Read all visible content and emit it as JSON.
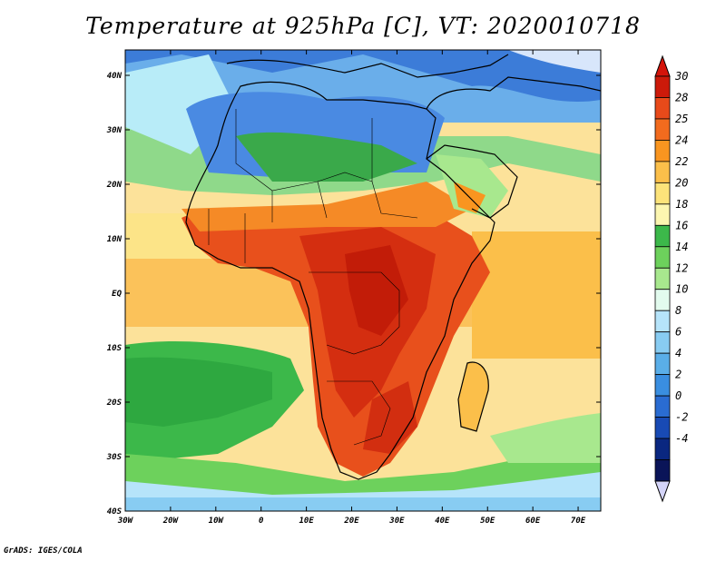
{
  "title": "Temperature at 925hPa [C], VT: 2020010718",
  "footer": "GrADS: IGES/COLA",
  "axes": {
    "x_ticks": [
      "30W",
      "20W",
      "10W",
      "0",
      "10E",
      "20E",
      "30E",
      "40E",
      "50E",
      "60E",
      "70E"
    ],
    "y_ticks": [
      "40N",
      "30N",
      "20N",
      "10N",
      "EQ",
      "10S",
      "20S",
      "30S",
      "40S"
    ]
  },
  "colorbar": {
    "levels": [
      "30",
      "28",
      "25",
      "24",
      "22",
      "20",
      "18",
      "16",
      "14",
      "12",
      "10",
      "8",
      "6",
      "4",
      "2",
      "0",
      "-2",
      "-4"
    ],
    "colors": [
      "#cc1a0a",
      "#e84a1a",
      "#f26b1e",
      "#f99520",
      "#fbbf4a",
      "#fce37a",
      "#fcf6b0",
      "#3cb84a",
      "#6dd15c",
      "#a8e88e",
      "#e2fbee",
      "#b6e4fa",
      "#88ccf2",
      "#5aaee8",
      "#3a8ee0",
      "#2a6cd2",
      "#184ab4",
      "#0a2780",
      "#0a1458"
    ],
    "top_color": "#d4140a",
    "bottom_color": "#d4d4f8"
  },
  "map": {
    "ocean_color": "#fce6a0",
    "land_hot": "#e8501c",
    "land_very_hot": "#d22c0c",
    "sahara_color": "#4a88e0",
    "south_ocean_color": "#3cb84a"
  }
}
